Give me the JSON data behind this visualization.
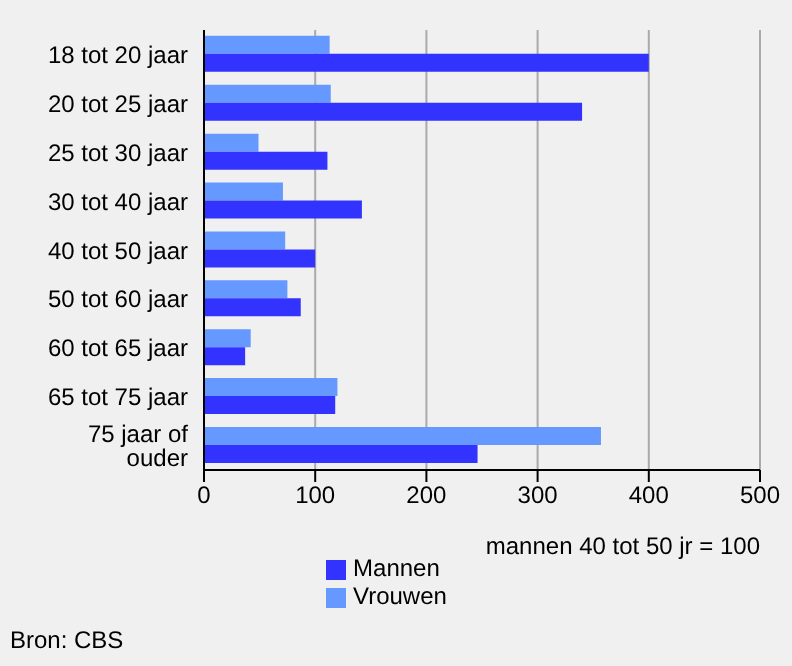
{
  "chart_data": {
    "type": "bar",
    "orientation": "horizontal",
    "categories": [
      "18 tot 20 jaar",
      "20 tot 25 jaar",
      "25 tot 30 jaar",
      "30 tot 40 jaar",
      "40 tot 50 jaar",
      "50 tot 60 jaar",
      "60 tot 65 jaar",
      "65 tot 75 jaar",
      "75 jaar of ouder"
    ],
    "series": [
      {
        "name": "Vrouwen",
        "color": "#6699ff",
        "values": [
          113,
          114,
          49,
          71,
          73,
          75,
          42,
          120,
          357
        ]
      },
      {
        "name": "Mannen",
        "color": "#3333ff",
        "values": [
          400,
          340,
          111,
          142,
          100,
          87,
          37,
          118,
          246
        ]
      }
    ],
    "xlim": [
      0,
      500
    ],
    "xticks": [
      0,
      100,
      200,
      300,
      400,
      500
    ],
    "xlabel": "mannen 40 tot 50 jr = 100",
    "grid": "x",
    "legend": "bottom",
    "annotations": [
      "Bron: CBS"
    ]
  }
}
